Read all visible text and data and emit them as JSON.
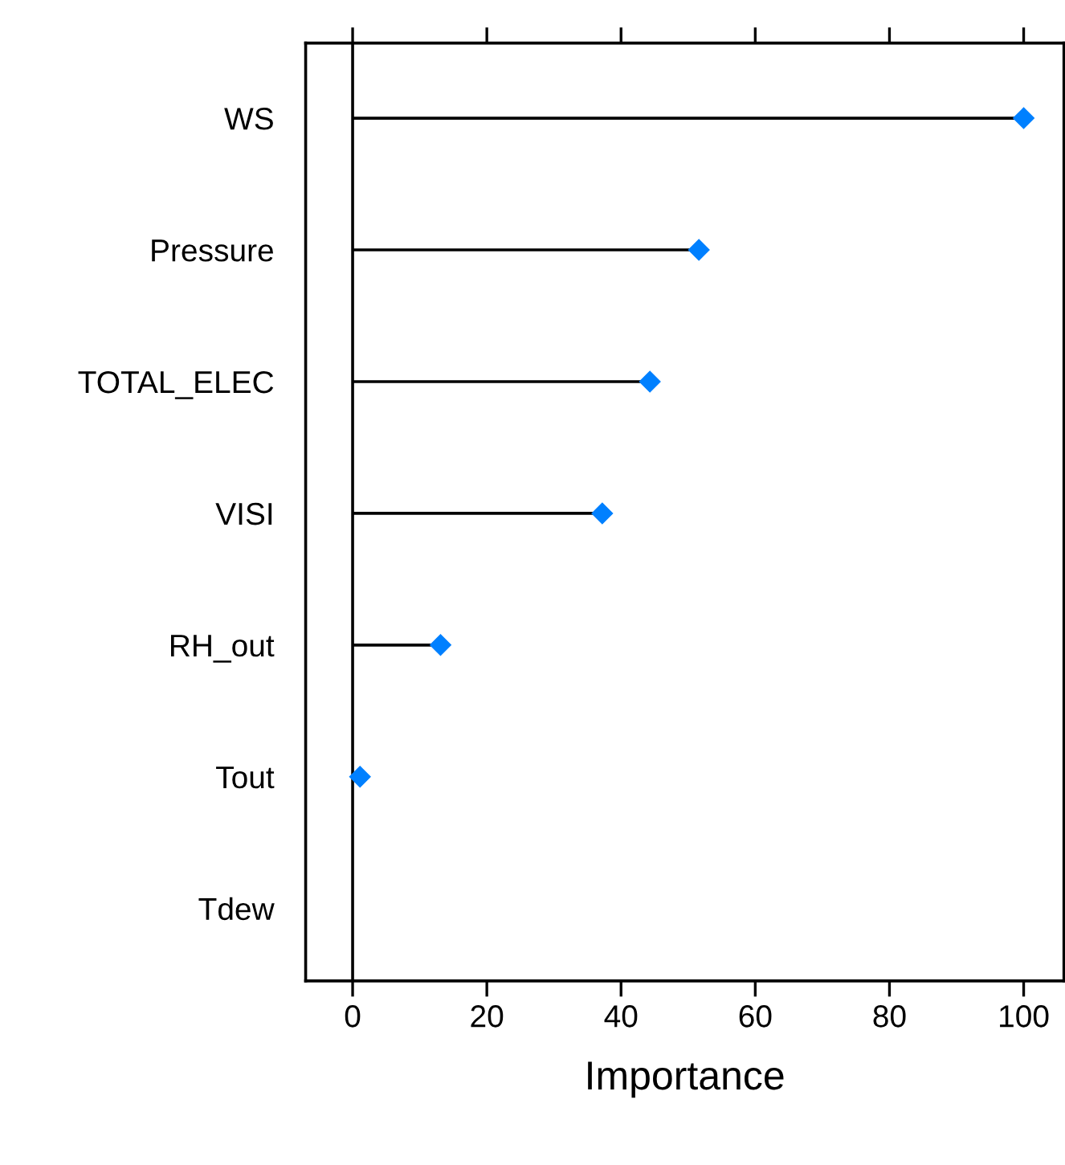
{
  "chart_data": {
    "type": "lollipop",
    "orientation": "horizontal",
    "categories": [
      "WS",
      "Pressure",
      "TOTAL_ELEC",
      "VISI",
      "RH_out",
      "Tout",
      "Tdew"
    ],
    "values": [
      100,
      51.6,
      44.3,
      37.2,
      13.1,
      1.1,
      null
    ],
    "color": "#0080ff",
    "marker": "diamond",
    "xlabel": "Importance",
    "xlim": [
      -7,
      106
    ],
    "xticks": [
      0,
      20,
      40,
      60,
      80,
      100
    ],
    "ref_lines": [
      {
        "axis": "x",
        "value": 0,
        "color": "#000000"
      }
    ],
    "grid": false,
    "legend": false
  }
}
